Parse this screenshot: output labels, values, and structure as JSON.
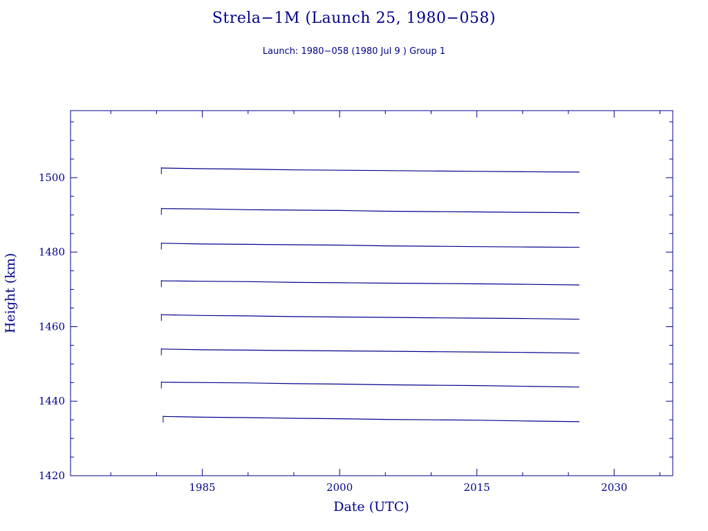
{
  "chart_data": {
    "type": "line",
    "title": "Strela−1M (Launch 25, 1980−058)",
    "subtitle": "Launch: 1980−058  (1980 Jul  9 )  Group 1",
    "xlabel": "Date (UTC)",
    "ylabel": "Height (km)",
    "xlim": [
      1970.6,
      2036.4
    ],
    "ylim": [
      1420,
      1518
    ],
    "xticks": [
      1985,
      2000,
      2015,
      2030
    ],
    "yticks": [
      1420,
      1440,
      1460,
      1480,
      1500
    ],
    "grid": false,
    "series": [
      {
        "x": [
          1980.52,
          1985,
          1990,
          1995,
          2000,
          2005,
          2010,
          2015,
          2020,
          2026.2
        ],
        "y": [
          1502.6,
          1502.4,
          1502.3,
          1502.1,
          1502.0,
          1501.9,
          1501.8,
          1501.7,
          1501.6,
          1501.5
        ]
      },
      {
        "x": [
          1980.52,
          1985,
          1990,
          1995,
          2000,
          2005,
          2010,
          2015,
          2020,
          2026.2
        ],
        "y": [
          1491.7,
          1491.6,
          1491.4,
          1491.3,
          1491.2,
          1491.0,
          1490.9,
          1490.8,
          1490.7,
          1490.6
        ]
      },
      {
        "x": [
          1980.52,
          1985,
          1990,
          1995,
          2000,
          2005,
          2010,
          2015,
          2020,
          2026.2
        ],
        "y": [
          1482.4,
          1482.2,
          1482.1,
          1482.0,
          1481.9,
          1481.7,
          1481.6,
          1481.5,
          1481.4,
          1481.3
        ]
      },
      {
        "x": [
          1980.52,
          1985,
          1990,
          1995,
          2000,
          2005,
          2010,
          2015,
          2020,
          2026.2
        ],
        "y": [
          1472.3,
          1472.2,
          1472.1,
          1471.9,
          1471.8,
          1471.7,
          1471.6,
          1471.5,
          1471.4,
          1471.2
        ]
      },
      {
        "x": [
          1980.52,
          1985,
          1990,
          1995,
          2000,
          2005,
          2010,
          2015,
          2020,
          2026.2
        ],
        "y": [
          1463.2,
          1463.0,
          1462.9,
          1462.7,
          1462.6,
          1462.5,
          1462.4,
          1462.3,
          1462.2,
          1462.0
        ]
      },
      {
        "x": [
          1980.52,
          1985,
          1990,
          1995,
          2000,
          2005,
          2010,
          2015,
          2020,
          2026.2
        ],
        "y": [
          1454.0,
          1453.8,
          1453.7,
          1453.6,
          1453.5,
          1453.4,
          1453.3,
          1453.2,
          1453.1,
          1452.9
        ]
      },
      {
        "x": [
          1980.52,
          1985,
          1990,
          1995,
          2000,
          2005,
          2010,
          2015,
          2020,
          2026.2
        ],
        "y": [
          1445.1,
          1445.0,
          1444.9,
          1444.7,
          1444.6,
          1444.4,
          1444.3,
          1444.2,
          1444.0,
          1443.8
        ]
      },
      {
        "x": [
          1980.72,
          1985,
          1990,
          1995,
          2000,
          2005,
          2010,
          2015,
          2020,
          2026.2
        ],
        "y": [
          1435.9,
          1435.7,
          1435.6,
          1435.4,
          1435.3,
          1435.1,
          1435.0,
          1434.9,
          1434.7,
          1434.5
        ]
      }
    ]
  }
}
